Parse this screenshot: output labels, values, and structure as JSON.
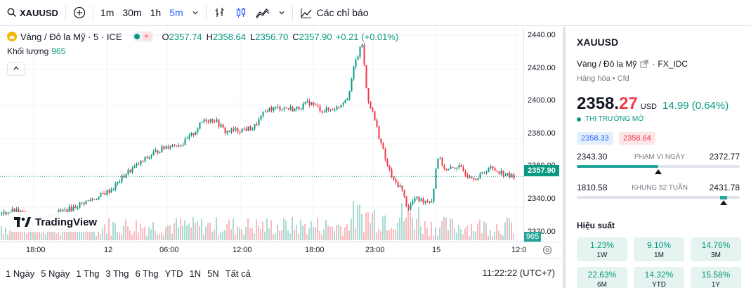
{
  "topbar": {
    "symbol": "XAUUSD",
    "intervals": [
      "1m",
      "30m",
      "1h",
      "5m"
    ],
    "active_interval": "5m",
    "indicators_label": "Các chỉ báo"
  },
  "legend": {
    "title": "Vàng / Đô la Mỹ · 5 · ICE",
    "open_label": "O",
    "open": "2357.74",
    "high_label": "H",
    "high": "2358.64",
    "low_label": "L",
    "low": "2356.70",
    "close_label": "C",
    "close": "2357.90",
    "change": "+0.21 (+0.01%)",
    "volume_label": "Khối lượng",
    "volume": "965"
  },
  "price_axis": {
    "ticks": [
      "2440.00",
      "2420.00",
      "2400.00",
      "2380.00",
      "2360.00",
      "2340.00",
      "2320.00"
    ],
    "last_price": "2357.90",
    "last_volume": "965"
  },
  "time_axis": {
    "labels": [
      "18:00",
      "12",
      "06:00",
      "12:00",
      "18:00",
      "23:00",
      "15",
      "12:0"
    ]
  },
  "branding": {
    "logo_text": "TradingView"
  },
  "range_bar": {
    "items": [
      "1 Ngày",
      "5 Ngày",
      "1 Thg",
      "3 Thg",
      "6 Thg",
      "YTD",
      "1N",
      "5N",
      "Tất cả"
    ],
    "clock": "11:22:22 (UTC+7)"
  },
  "panel": {
    "symbol": "XAUUSD",
    "description": "Vàng / Đô la Mỹ",
    "exchange": "FX_IDC",
    "category": "Hàng hóa • Cfd",
    "price_main": "2358.",
    "price_tail": "27",
    "currency": "USD",
    "change": "14.99 (0.64%)",
    "market_status": "THỊ TRƯỜNG MỞ",
    "bid": "2358.33",
    "ask": "2358.64",
    "day_range": {
      "low": "2343.30",
      "high": "2372.77",
      "label": "PHẠM VI NGÀY",
      "fill": 0.5
    },
    "week52_range": {
      "low": "1810.58",
      "high": "2431.78",
      "label": "KHUNG 52 TUẦN",
      "fill": 0.88
    },
    "performance_title": "Hiệu suất",
    "performance": [
      {
        "value": "1.23%",
        "label": "1W"
      },
      {
        "value": "9.10%",
        "label": "1M"
      },
      {
        "value": "14.76%",
        "label": "3M"
      },
      {
        "value": "22.63%",
        "label": "6M"
      },
      {
        "value": "14.32%",
        "label": "YTD"
      },
      {
        "value": "15.58%",
        "label": "1Y"
      }
    ]
  },
  "colors": {
    "up": "#089981",
    "down": "#f23645",
    "accent": "#2962ff"
  },
  "chart_data": {
    "type": "candlestick",
    "ylim": [
      2320,
      2445
    ],
    "price_path": [
      [
        0,
        2336
      ],
      [
        20,
        2338
      ],
      [
        40,
        2335
      ],
      [
        60,
        2334
      ],
      [
        80,
        2337
      ],
      [
        100,
        2339
      ],
      [
        120,
        2343
      ],
      [
        140,
        2346
      ],
      [
        160,
        2351
      ],
      [
        180,
        2360
      ],
      [
        200,
        2366
      ],
      [
        220,
        2372
      ],
      [
        240,
        2376
      ],
      [
        260,
        2377
      ],
      [
        275,
        2383
      ],
      [
        290,
        2391
      ],
      [
        305,
        2391
      ],
      [
        320,
        2384
      ],
      [
        340,
        2385
      ],
      [
        360,
        2386
      ],
      [
        380,
        2397
      ],
      [
        400,
        2398
      ],
      [
        420,
        2397
      ],
      [
        440,
        2401
      ],
      [
        460,
        2396
      ],
      [
        480,
        2398
      ],
      [
        495,
        2405
      ],
      [
        505,
        2424
      ],
      [
        515,
        2435
      ],
      [
        522,
        2405
      ],
      [
        530,
        2395
      ],
      [
        540,
        2380
      ],
      [
        550,
        2365
      ],
      [
        560,
        2355
      ],
      [
        570,
        2352
      ],
      [
        580,
        2339
      ],
      [
        590,
        2345
      ],
      [
        600,
        2344
      ],
      [
        615,
        2344
      ],
      [
        622,
        2370
      ],
      [
        635,
        2361
      ],
      [
        650,
        2364
      ],
      [
        665,
        2359
      ],
      [
        680,
        2357
      ],
      [
        695,
        2363
      ],
      [
        710,
        2361
      ],
      [
        725,
        2358
      ],
      [
        732,
        2358
      ]
    ]
  }
}
